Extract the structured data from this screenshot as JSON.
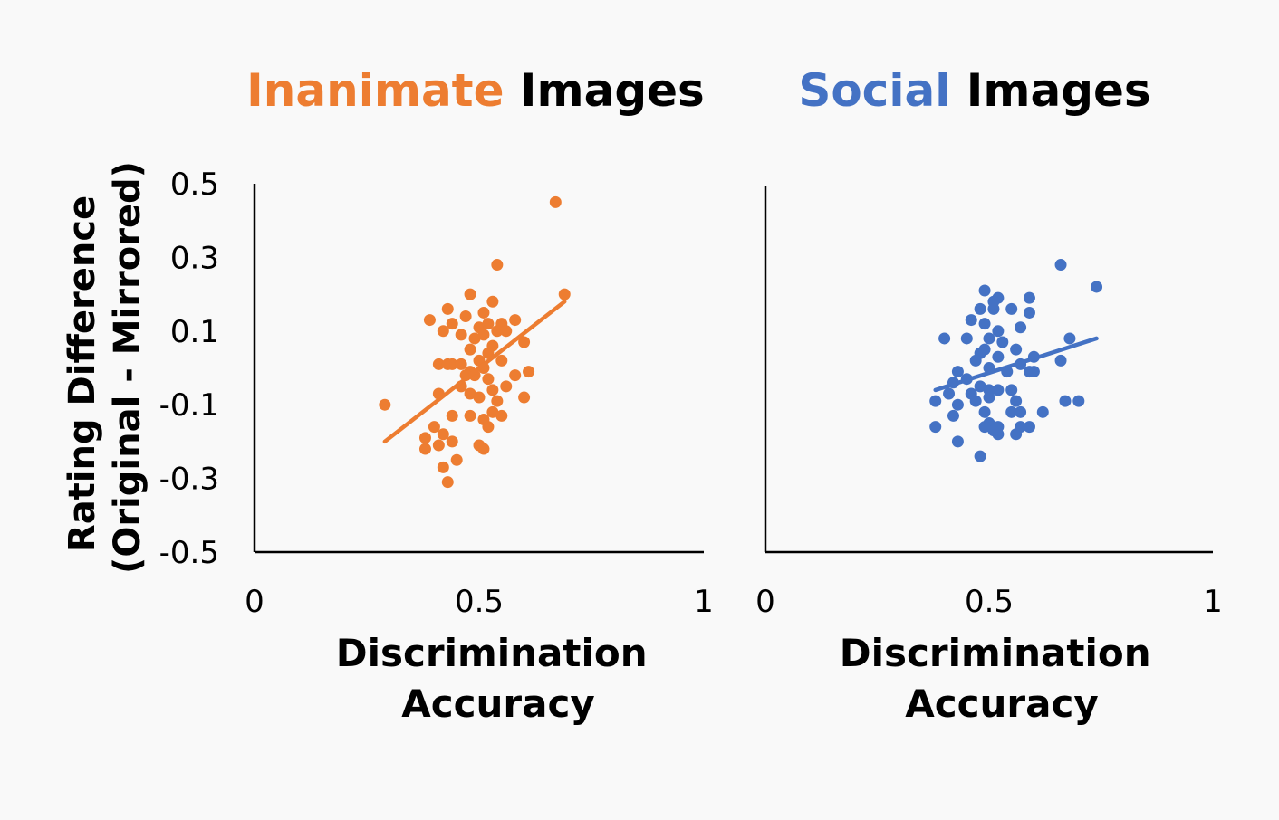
{
  "chart_data": [
    {
      "type": "scatter",
      "title": "Inanimate Images",
      "title_parts": [
        {
          "text": "Inanimate",
          "color": "#ed7d31"
        },
        {
          "text": " Images",
          "color": "#000000"
        }
      ],
      "xlabel": "Discrimination Accuracy",
      "xlabel_lines": [
        "Discrimination",
        "Accuracy"
      ],
      "ylabel": "Rating Difference (Original - Mirrored)",
      "ylabel_lines": [
        "Rating Difference",
        "(Original - Mirrored)"
      ],
      "xlim": [
        0,
        1
      ],
      "ylim": [
        -0.5,
        0.5
      ],
      "xticks": [
        "0",
        "0.5",
        "1"
      ],
      "xtick_values": [
        0,
        0.5,
        1
      ],
      "yticks": [
        "0.5",
        "0.3",
        "0.1",
        "-0.1",
        "-0.3",
        "-0.5"
      ],
      "ytick_values": [
        0.5,
        0.3,
        0.1,
        -0.1,
        -0.3,
        -0.5
      ],
      "grid": false,
      "color": "#ed7d31",
      "trendline": {
        "x": [
          0.29,
          0.69
        ],
        "y": [
          -0.2,
          0.18
        ]
      },
      "points": [
        [
          0.67,
          0.45
        ],
        [
          0.54,
          0.28
        ],
        [
          0.48,
          0.2
        ],
        [
          0.69,
          0.2
        ],
        [
          0.53,
          0.18
        ],
        [
          0.51,
          0.15
        ],
        [
          0.43,
          0.16
        ],
        [
          0.39,
          0.13
        ],
        [
          0.47,
          0.14
        ],
        [
          0.55,
          0.12
        ],
        [
          0.58,
          0.13
        ],
        [
          0.44,
          0.12
        ],
        [
          0.5,
          0.11
        ],
        [
          0.52,
          0.12
        ],
        [
          0.54,
          0.1
        ],
        [
          0.42,
          0.1
        ],
        [
          0.46,
          0.09
        ],
        [
          0.49,
          0.08
        ],
        [
          0.51,
          0.09
        ],
        [
          0.56,
          0.1
        ],
        [
          0.6,
          0.07
        ],
        [
          0.48,
          0.05
        ],
        [
          0.53,
          0.06
        ],
        [
          0.52,
          0.04
        ],
        [
          0.41,
          0.01
        ],
        [
          0.43,
          0.01
        ],
        [
          0.44,
          0.01
        ],
        [
          0.46,
          0.01
        ],
        [
          0.5,
          0.02
        ],
        [
          0.55,
          0.02
        ],
        [
          0.51,
          0.0
        ],
        [
          0.49,
          -0.02
        ],
        [
          0.48,
          -0.01
        ],
        [
          0.47,
          -0.02
        ],
        [
          0.52,
          -0.03
        ],
        [
          0.58,
          -0.02
        ],
        [
          0.61,
          -0.01
        ],
        [
          0.46,
          -0.05
        ],
        [
          0.53,
          -0.06
        ],
        [
          0.56,
          -0.05
        ],
        [
          0.6,
          -0.08
        ],
        [
          0.41,
          -0.07
        ],
        [
          0.48,
          -0.07
        ],
        [
          0.5,
          -0.08
        ],
        [
          0.54,
          -0.09
        ],
        [
          0.29,
          -0.1
        ],
        [
          0.44,
          -0.13
        ],
        [
          0.48,
          -0.13
        ],
        [
          0.51,
          -0.14
        ],
        [
          0.53,
          -0.12
        ],
        [
          0.55,
          -0.13
        ],
        [
          0.52,
          -0.16
        ],
        [
          0.4,
          -0.16
        ],
        [
          0.42,
          -0.18
        ],
        [
          0.38,
          -0.19
        ],
        [
          0.44,
          -0.2
        ],
        [
          0.41,
          -0.21
        ],
        [
          0.38,
          -0.22
        ],
        [
          0.5,
          -0.21
        ],
        [
          0.51,
          -0.22
        ],
        [
          0.45,
          -0.25
        ],
        [
          0.42,
          -0.27
        ],
        [
          0.43,
          -0.31
        ]
      ]
    },
    {
      "type": "scatter",
      "title": "Social Images",
      "title_parts": [
        {
          "text": "Social",
          "color": "#4472c4"
        },
        {
          "text": " Images",
          "color": "#000000"
        }
      ],
      "xlabel": "Discrimination Accuracy",
      "xlabel_lines": [
        "Discrimination",
        "Accuracy"
      ],
      "xlim": [
        0,
        1
      ],
      "ylim": [
        -0.5,
        0.5
      ],
      "xticks": [
        "0",
        "0.5",
        "1"
      ],
      "xtick_values": [
        0,
        0.5,
        1
      ],
      "grid": false,
      "color": "#4472c4",
      "trendline": {
        "x": [
          0.38,
          0.74
        ],
        "y": [
          -0.06,
          0.08
        ]
      },
      "points": [
        [
          0.66,
          0.28
        ],
        [
          0.74,
          0.22
        ],
        [
          0.49,
          0.21
        ],
        [
          0.52,
          0.19
        ],
        [
          0.51,
          0.18
        ],
        [
          0.59,
          0.19
        ],
        [
          0.48,
          0.16
        ],
        [
          0.55,
          0.16
        ],
        [
          0.59,
          0.15
        ],
        [
          0.51,
          0.16
        ],
        [
          0.46,
          0.13
        ],
        [
          0.49,
          0.12
        ],
        [
          0.57,
          0.11
        ],
        [
          0.52,
          0.1
        ],
        [
          0.4,
          0.08
        ],
        [
          0.45,
          0.08
        ],
        [
          0.5,
          0.08
        ],
        [
          0.53,
          0.07
        ],
        [
          0.68,
          0.08
        ],
        [
          0.49,
          0.05
        ],
        [
          0.56,
          0.05
        ],
        [
          0.48,
          0.04
        ],
        [
          0.6,
          0.03
        ],
        [
          0.52,
          0.03
        ],
        [
          0.66,
          0.02
        ],
        [
          0.47,
          0.02
        ],
        [
          0.57,
          0.01
        ],
        [
          0.5,
          0.0
        ],
        [
          0.54,
          -0.01
        ],
        [
          0.43,
          -0.01
        ],
        [
          0.6,
          -0.01
        ],
        [
          0.59,
          -0.01
        ],
        [
          0.45,
          -0.03
        ],
        [
          0.42,
          -0.04
        ],
        [
          0.48,
          -0.05
        ],
        [
          0.5,
          -0.06
        ],
        [
          0.52,
          -0.06
        ],
        [
          0.41,
          -0.07
        ],
        [
          0.46,
          -0.07
        ],
        [
          0.55,
          -0.06
        ],
        [
          0.5,
          -0.08
        ],
        [
          0.47,
          -0.09
        ],
        [
          0.38,
          -0.09
        ],
        [
          0.43,
          -0.1
        ],
        [
          0.56,
          -0.09
        ],
        [
          0.67,
          -0.09
        ],
        [
          0.7,
          -0.09
        ],
        [
          0.49,
          -0.12
        ],
        [
          0.55,
          -0.12
        ],
        [
          0.57,
          -0.12
        ],
        [
          0.62,
          -0.12
        ],
        [
          0.42,
          -0.13
        ],
        [
          0.5,
          -0.15
        ],
        [
          0.52,
          -0.16
        ],
        [
          0.49,
          -0.16
        ],
        [
          0.57,
          -0.16
        ],
        [
          0.59,
          -0.16
        ],
        [
          0.38,
          -0.16
        ],
        [
          0.52,
          -0.18
        ],
        [
          0.56,
          -0.18
        ],
        [
          0.51,
          -0.17
        ],
        [
          0.43,
          -0.2
        ],
        [
          0.48,
          -0.24
        ]
      ]
    }
  ]
}
